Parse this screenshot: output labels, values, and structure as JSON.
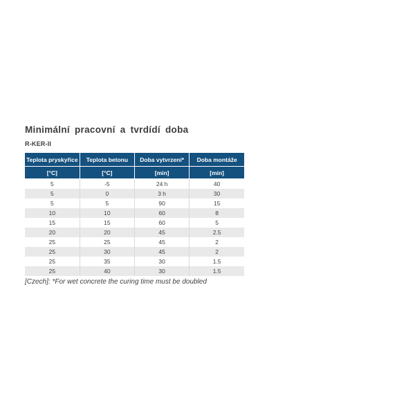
{
  "page": {
    "title": "Minimální pracovní a tvrdídí doba",
    "subtitle": "R-KER-II",
    "footnote": "[Czech]: *For wet concrete the curing time must be doubled"
  },
  "colors": {
    "header_bg": "#14517f",
    "row_alt_bg": "#e9e9e9",
    "grid_line": "#d9d9d9",
    "text_dark": "#3c3c3c"
  },
  "chart_data": {
    "type": "table",
    "title": "Minimální pracovní a tvrdídí doba",
    "columns": [
      {
        "label": "Teplota pryskyřice",
        "unit": "[°C]"
      },
      {
        "label": "Teplota betonu",
        "unit": "[°C]"
      },
      {
        "label": "Doba vytvrzení*",
        "unit": "[min]"
      },
      {
        "label": "Doba montáže",
        "unit": "[min]"
      }
    ],
    "rows": [
      [
        "5",
        "-5",
        "24 h",
        "40"
      ],
      [
        "5",
        "0",
        "3 h",
        "30"
      ],
      [
        "5",
        "5",
        "90",
        "15"
      ],
      [
        "10",
        "10",
        "60",
        "8"
      ],
      [
        "15",
        "15",
        "60",
        "5"
      ],
      [
        "20",
        "20",
        "45",
        "2.5"
      ],
      [
        "25",
        "25",
        "45",
        "2"
      ],
      [
        "25",
        "30",
        "45",
        "2"
      ],
      [
        "25",
        "35",
        "30",
        "1.5"
      ],
      [
        "25",
        "40",
        "30",
        "1.5"
      ]
    ]
  }
}
